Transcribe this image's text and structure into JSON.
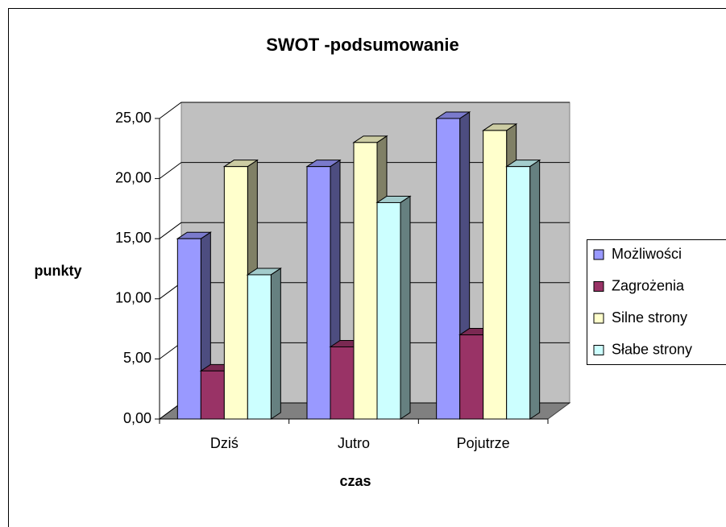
{
  "chart_data": {
    "type": "bar3d",
    "title": "SWOT -podsumowanie",
    "x_label": "czas",
    "y_label": "punkty",
    "categories": [
      "Dziś",
      "Jutro",
      "Pojutrze"
    ],
    "series": [
      {
        "name": "Możliwości",
        "color": "#9999ff",
        "values": [
          15,
          21,
          25
        ]
      },
      {
        "name": "Zagrożenia",
        "color": "#993366",
        "values": [
          4,
          6,
          7
        ]
      },
      {
        "name": "Silne strony",
        "color": "#ffffcc",
        "values": [
          21,
          23,
          24
        ]
      },
      {
        "name": "Słabe strony",
        "color": "#ccffff",
        "values": [
          12,
          18,
          21
        ]
      }
    ],
    "ylim": [
      0,
      25
    ],
    "yticks": [
      {
        "value": 0,
        "label": "0,00"
      },
      {
        "value": 5,
        "label": "5,00"
      },
      {
        "value": 10,
        "label": "10,00"
      },
      {
        "value": 15,
        "label": "15,00"
      },
      {
        "value": 20,
        "label": "20,00"
      },
      {
        "value": 25,
        "label": "25,00"
      }
    ],
    "grid": true,
    "legend": "right"
  }
}
